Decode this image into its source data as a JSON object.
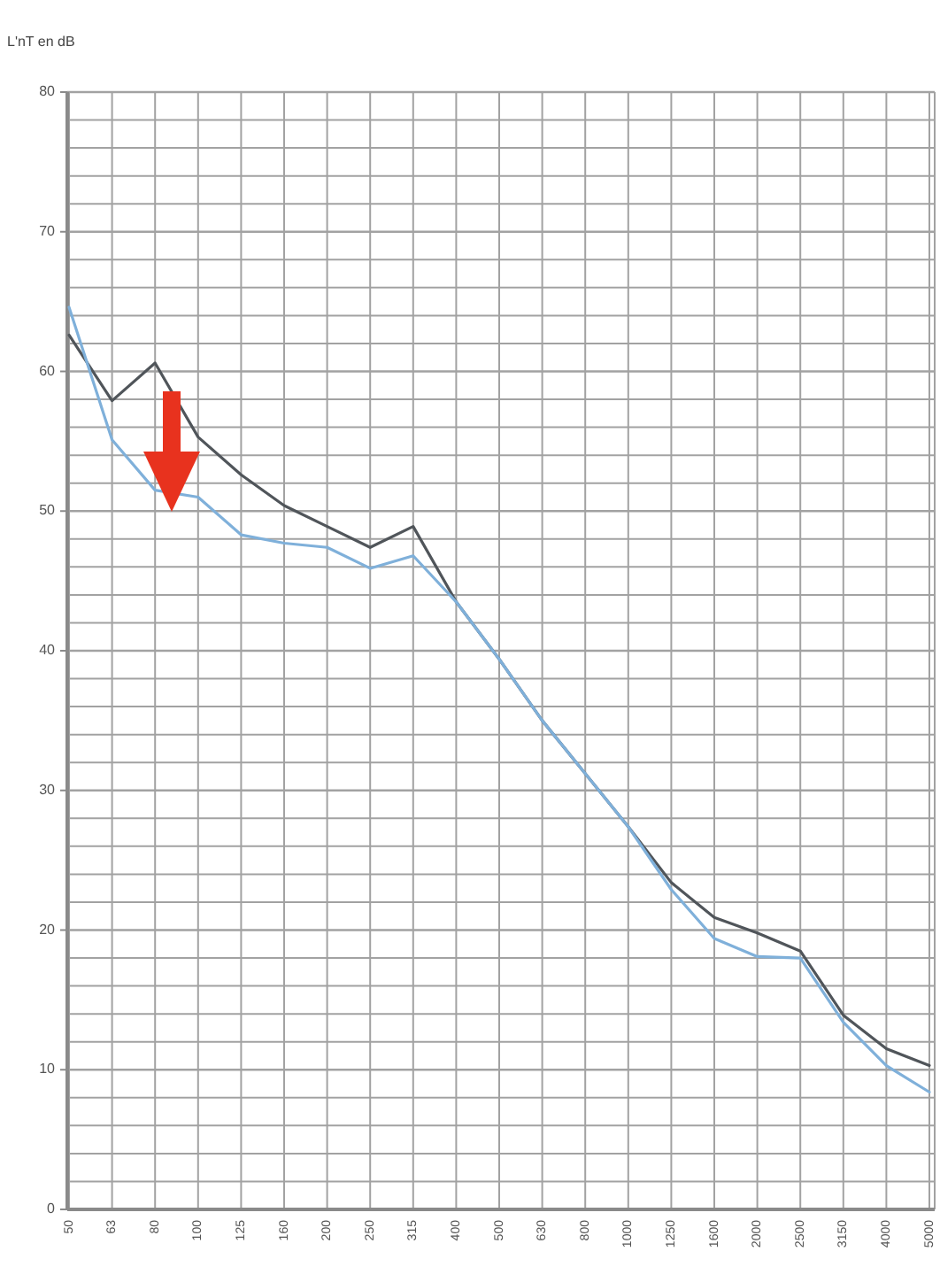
{
  "chart_data": {
    "type": "line",
    "ylabel": "L'nT en dB",
    "categories": [
      "50",
      "63",
      "80",
      "100",
      "125",
      "160",
      "200",
      "250",
      "315",
      "400",
      "500",
      "630",
      "800",
      "1000",
      "1250",
      "1600",
      "2000",
      "2500",
      "3150",
      "4000",
      "5000"
    ],
    "series": [
      {
        "color": "#50555a",
        "values": [
          62.6,
          57.9,
          60.6,
          55.3,
          52.6,
          50.4,
          48.9,
          47.4,
          48.9,
          43.5,
          39.4,
          35,
          31.2,
          27.4,
          23.4,
          20.9,
          19.8,
          18.5,
          13.9,
          11.5,
          10.3
        ]
      },
      {
        "color": "#7fb0da",
        "values": [
          64.6,
          55.1,
          51.5,
          51,
          48.3,
          47.7,
          47.4,
          45.9,
          46.8,
          43.5,
          39.4,
          35,
          31.2,
          27.4,
          22.9,
          19.4,
          18.1,
          18,
          13.4,
          10.3,
          8.4
        ]
      }
    ],
    "ylim": [
      0,
      80
    ],
    "yticks": [
      0,
      {
        "value": 2,
        "label": null
      },
      {
        "value": 4,
        "label": null
      },
      {
        "value": 6,
        "label": null
      },
      {
        "value": 8,
        "label": null
      },
      10,
      {
        "value": 12,
        "label": null
      },
      {
        "value": 14,
        "label": null
      },
      {
        "value": 16,
        "label": null
      },
      {
        "value": 18,
        "label": null
      },
      20,
      {
        "value": 22,
        "label": null
      },
      {
        "value": 24,
        "label": null
      },
      {
        "value": 26,
        "label": null
      },
      {
        "value": 28,
        "label": null
      },
      30,
      {
        "value": 32,
        "label": null
      },
      {
        "value": 34,
        "label": null
      },
      {
        "value": 36,
        "label": null
      },
      {
        "value": 38,
        "label": null
      },
      40,
      {
        "value": 42,
        "label": null
      },
      {
        "value": 44,
        "label": null
      },
      {
        "value": 46,
        "label": null
      },
      {
        "value": 48,
        "label": null
      },
      50,
      {
        "value": 52,
        "label": null
      },
      {
        "value": 54,
        "label": null
      },
      {
        "value": 56,
        "label": null
      },
      {
        "value": 58,
        "label": null
      },
      60,
      {
        "value": 62,
        "label": null
      },
      {
        "value": 64,
        "label": null
      },
      {
        "value": 66,
        "label": null
      },
      {
        "value": 68,
        "label": null
      },
      70,
      {
        "value": 72,
        "label": null
      },
      {
        "value": 74,
        "label": null
      },
      {
        "value": 76,
        "label": null
      },
      {
        "value": 78,
        "label": null
      },
      80
    ],
    "grid": true,
    "line_style": "solid"
  }
}
